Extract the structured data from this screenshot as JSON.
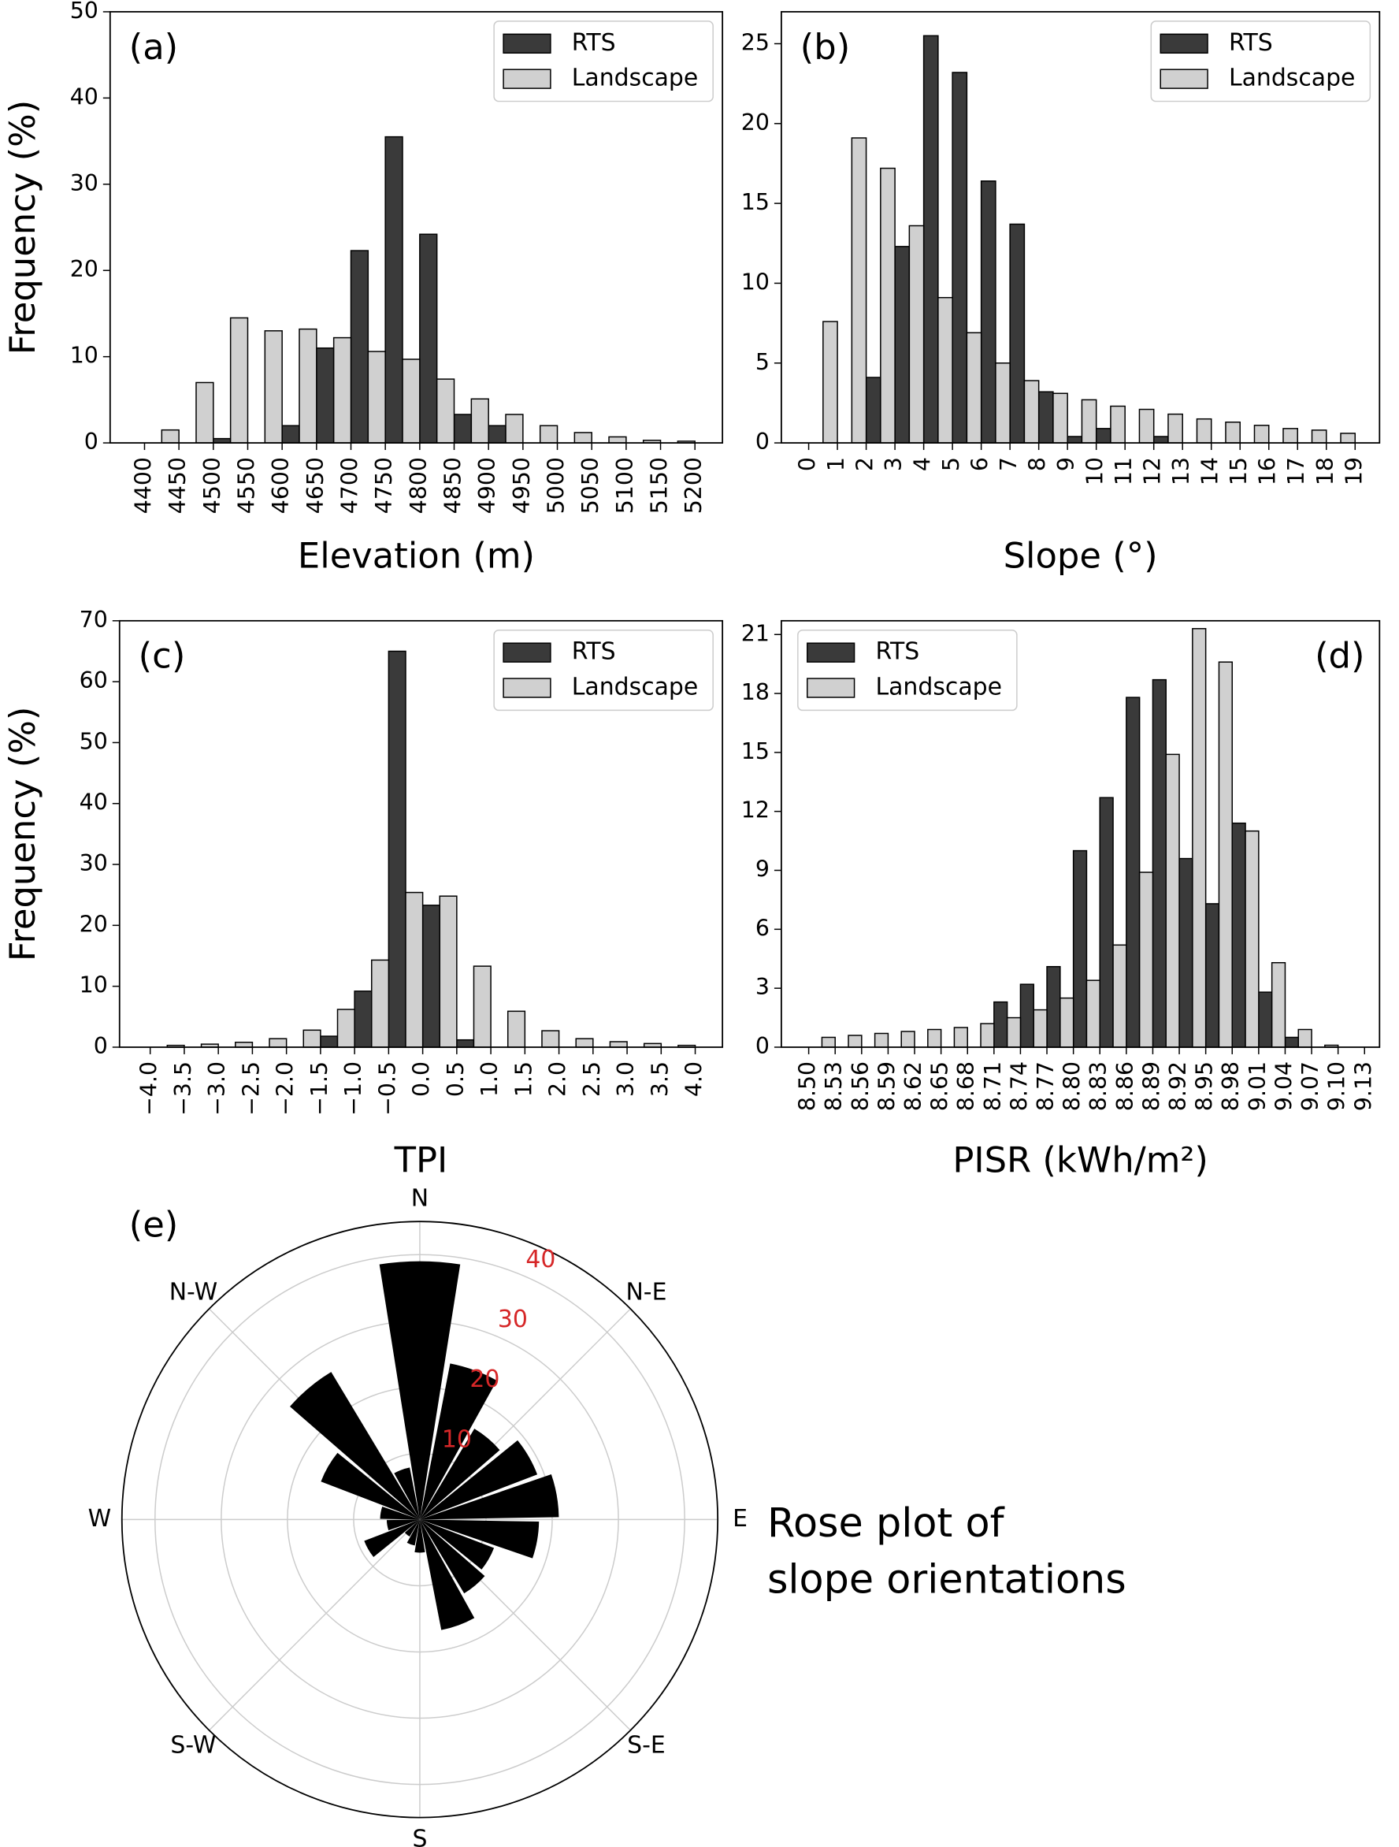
{
  "chart_data": [
    {
      "type": "histogram",
      "label": "(a)",
      "xlabel": "Elevation (m)",
      "ylabel": "Frequency (%)",
      "bins": [
        4400,
        4450,
        4500,
        4550,
        4600,
        4650,
        4700,
        4750,
        4800,
        4850,
        4900,
        4950,
        5000,
        5050,
        5100,
        5150,
        5200
      ],
      "series": [
        {
          "name": "RTS",
          "color": "#3a3a3a",
          "values": [
            0,
            0,
            0.5,
            0,
            2,
            11,
            22.3,
            35.5,
            24.2,
            3.3,
            2,
            0,
            0,
            0,
            0,
            0
          ]
        },
        {
          "name": "Landscape",
          "color": "#d0d0d0",
          "values": [
            1.5,
            7,
            14.5,
            13,
            13.2,
            12.2,
            10.6,
            9.7,
            7.4,
            5.1,
            3.3,
            2,
            1.2,
            0.7,
            0.3,
            0.2
          ]
        }
      ],
      "xlim": [
        4350,
        5240
      ],
      "ylim": [
        0,
        50
      ],
      "xticks": [
        4400,
        4450,
        4500,
        4550,
        4600,
        4650,
        4700,
        4750,
        4800,
        4850,
        4900,
        4950,
        5000,
        5050,
        5100,
        5150,
        5200
      ],
      "yticks": [
        0,
        10,
        20,
        30,
        40,
        50
      ],
      "legend": "upper right"
    },
    {
      "type": "histogram",
      "label": "(b)",
      "xlabel": "Slope (°)",
      "bins": [
        0,
        1,
        2,
        3,
        4,
        5,
        6,
        7,
        8,
        9,
        10,
        11,
        12,
        13,
        14,
        15,
        16,
        17,
        18,
        19
      ],
      "series": [
        {
          "name": "RTS",
          "color": "#3a3a3a",
          "values": [
            0,
            0,
            4.1,
            12.3,
            25.5,
            23.2,
            16.4,
            13.7,
            3.2,
            0.4,
            0.9,
            0,
            0.4,
            0,
            0,
            0,
            0,
            0,
            0
          ]
        },
        {
          "name": "Landscape",
          "color": "#d0d0d0",
          "values": [
            7.6,
            19.1,
            17.2,
            13.6,
            9.1,
            6.9,
            5,
            3.9,
            3.1,
            2.7,
            2.3,
            2.1,
            1.8,
            1.5,
            1.3,
            1.1,
            0.9,
            0.8,
            0.6
          ]
        }
      ],
      "xlim": [
        -0.95,
        19.85
      ],
      "ylim": [
        0,
        27
      ],
      "xticks": [
        0,
        1,
        2,
        3,
        4,
        5,
        6,
        7,
        8,
        9,
        10,
        11,
        12,
        13,
        14,
        15,
        16,
        17,
        18,
        19
      ],
      "yticks": [
        0,
        5,
        10,
        15,
        20,
        25
      ],
      "legend": "upper right"
    },
    {
      "type": "histogram",
      "label": "(c)",
      "xlabel": "TPI",
      "ylabel": "Frequency (%)",
      "bins": [
        -4,
        -3.5,
        -3,
        -2.5,
        -2,
        -1.5,
        -1,
        -0.5,
        0,
        0.5,
        1,
        1.5,
        2,
        2.5,
        3,
        3.5,
        4
      ],
      "series": [
        {
          "name": "RTS",
          "color": "#3a3a3a",
          "values": [
            0,
            0,
            0,
            0,
            0,
            1.8,
            9.2,
            65,
            23.3,
            1.2,
            0,
            0,
            0,
            0,
            0,
            0
          ]
        },
        {
          "name": "Landscape",
          "color": "#d0d0d0",
          "values": [
            0.3,
            0.5,
            0.8,
            1.4,
            2.8,
            6.2,
            14.3,
            25.4,
            24.8,
            13.3,
            5.9,
            2.7,
            1.4,
            0.9,
            0.6,
            0.3
          ]
        }
      ],
      "xlim": [
        -4.45,
        4.4
      ],
      "ylim": [
        0,
        70
      ],
      "xticks": [
        {
          "value": -4,
          "label": "−4.0"
        },
        {
          "value": -3.5,
          "label": "−3.5"
        },
        {
          "value": -3,
          "label": "−3.0"
        },
        {
          "value": -2.5,
          "label": "−2.5"
        },
        {
          "value": -2,
          "label": "−2.0"
        },
        {
          "value": -1.5,
          "label": "−1.5"
        },
        {
          "value": -1,
          "label": "−1.0"
        },
        {
          "value": -0.5,
          "label": "−0.5"
        },
        {
          "value": 0,
          "label": "0.0"
        },
        0.5,
        {
          "value": 1,
          "label": "1.0"
        },
        1.5,
        {
          "value": 2,
          "label": "2.0"
        },
        2.5,
        {
          "value": 3,
          "label": "3.0"
        },
        3.5,
        {
          "value": 4,
          "label": "4.0"
        }
      ],
      "yticks": [
        0,
        10,
        20,
        30,
        40,
        50,
        60,
        70
      ],
      "legend": "upper right"
    },
    {
      "type": "histogram",
      "label": "(d)",
      "xlabel": "PISR (kWh/m²)",
      "bins": [
        8.5,
        8.53,
        8.56,
        8.59,
        8.62,
        8.65,
        8.68,
        8.71,
        8.74,
        8.77,
        8.8,
        8.83,
        8.86,
        8.89,
        8.92,
        8.95,
        8.98,
        9.01,
        9.04,
        9.07,
        9.1,
        9.13
      ],
      "series": [
        {
          "name": "RTS",
          "color": "#3a3a3a",
          "values": [
            0,
            0,
            0,
            0,
            0,
            0,
            0,
            2.3,
            3.2,
            4.1,
            10,
            12.7,
            17.8,
            18.7,
            9.6,
            7.3,
            11.4,
            2.8,
            0.5,
            0,
            0
          ]
        },
        {
          "name": "Landscape",
          "color": "#d0d0d0",
          "values": [
            0.5,
            0.6,
            0.7,
            0.8,
            0.9,
            1,
            1.2,
            1.5,
            1.9,
            2.5,
            3.4,
            5.2,
            8.9,
            14.9,
            21.3,
            19.6,
            11,
            4.3,
            0.9,
            0.1,
            0
          ]
        }
      ],
      "xlim": [
        8.469,
        9.147
      ],
      "ylim": [
        0,
        21.7
      ],
      "xticks": [
        {
          "value": 8.5,
          "label": "8.50"
        },
        8.53,
        8.56,
        8.59,
        8.62,
        8.65,
        8.68,
        8.71,
        8.74,
        8.77,
        {
          "value": 8.8,
          "label": "8.80"
        },
        8.83,
        8.86,
        8.89,
        8.92,
        8.95,
        8.98,
        9.01,
        9.04,
        9.07,
        {
          "value": 9.1,
          "label": "9.10"
        },
        9.13
      ],
      "yticks": [
        0,
        3,
        6,
        9,
        12,
        15,
        18,
        21
      ],
      "legend": "upper left"
    },
    {
      "type": "rose",
      "label": "(e)",
      "x": [
        0,
        20,
        40,
        60,
        80,
        100,
        120,
        140,
        160,
        180,
        200,
        220,
        240,
        260,
        280,
        300,
        320,
        340
      ],
      "values": [
        39,
        24,
        16,
        19,
        21,
        18,
        12,
        13,
        17,
        5,
        4,
        3,
        9,
        5,
        6,
        16,
        26,
        8
      ],
      "color": "#000000",
      "tick_color": "#d62728",
      "ylim": [
        0,
        45
      ],
      "yticks": [
        10,
        20,
        30,
        40
      ],
      "directions": [
        "N",
        "N-E",
        "E",
        "S-E",
        "S",
        "S-W",
        "W",
        "N-W"
      ],
      "annotation": [
        "Rose plot of",
        "slope orientations"
      ]
    }
  ]
}
